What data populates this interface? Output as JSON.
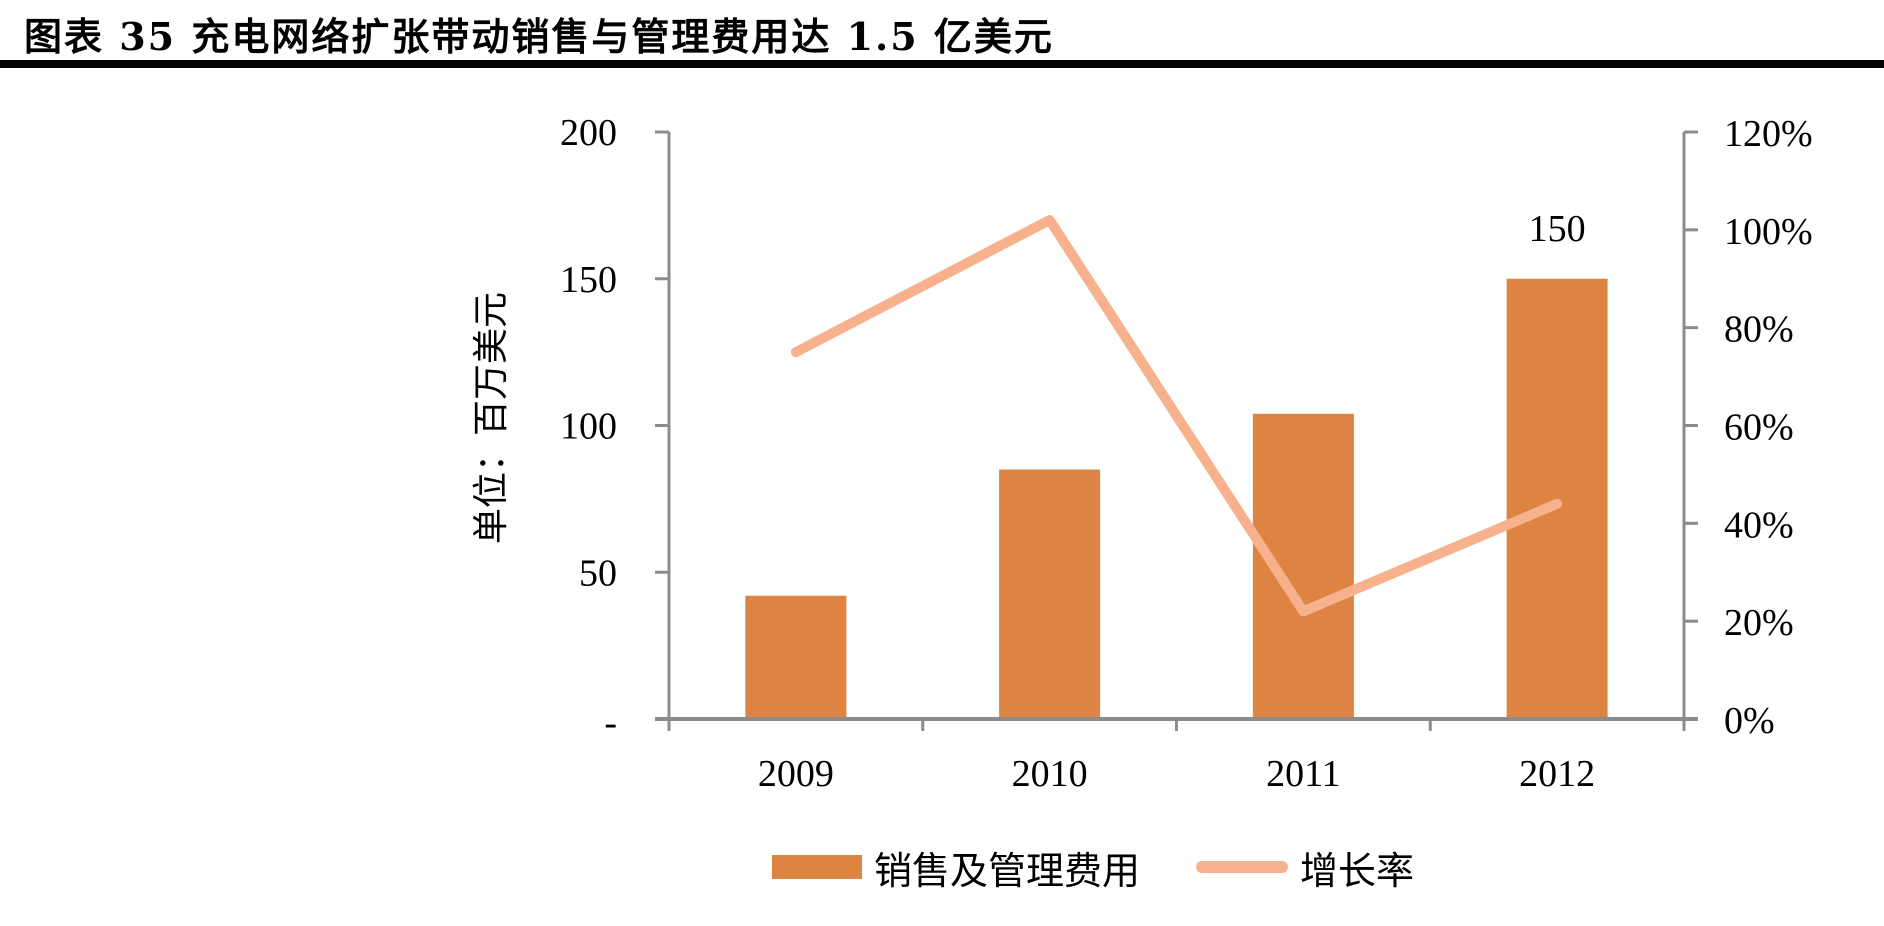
{
  "title": "图表 35 充电网络扩张带动销售与管理费用达 1.5 亿美元",
  "colors": {
    "bar": "#DE8443",
    "line": "#F7B18C",
    "axis": "#8C8C8C",
    "rule": "#000000"
  },
  "chart_data": {
    "type": "bar+line",
    "title": "图表 35 充电网络扩张带动销售与管理费用达 1.5 亿美元",
    "categories": [
      "2009",
      "2010",
      "2011",
      "2012"
    ],
    "series": [
      {
        "name": "销售及管理费用",
        "type": "bar",
        "axis": "left",
        "values": [
          42,
          85,
          104,
          150
        ]
      },
      {
        "name": "增长率",
        "type": "line",
        "axis": "right",
        "values": [
          0.75,
          1.02,
          0.22,
          0.44
        ]
      }
    ],
    "data_labels": [
      {
        "category": "2012",
        "series": "销售及管理费用",
        "text": "150"
      }
    ],
    "xlabel": "",
    "ylabel": "单位：百万美元",
    "ylim": [
      0,
      200
    ],
    "y_ticks": [
      "-",
      "50",
      "100",
      "150",
      "200"
    ],
    "y2lim": [
      0,
      1.2
    ],
    "y2_ticks": [
      "0%",
      "20%",
      "40%",
      "60%",
      "80%",
      "100%",
      "120%"
    ],
    "grid": false,
    "legend_position": "bottom"
  },
  "legend": {
    "bar_label": "销售及管理费用",
    "line_label": "增长率"
  }
}
